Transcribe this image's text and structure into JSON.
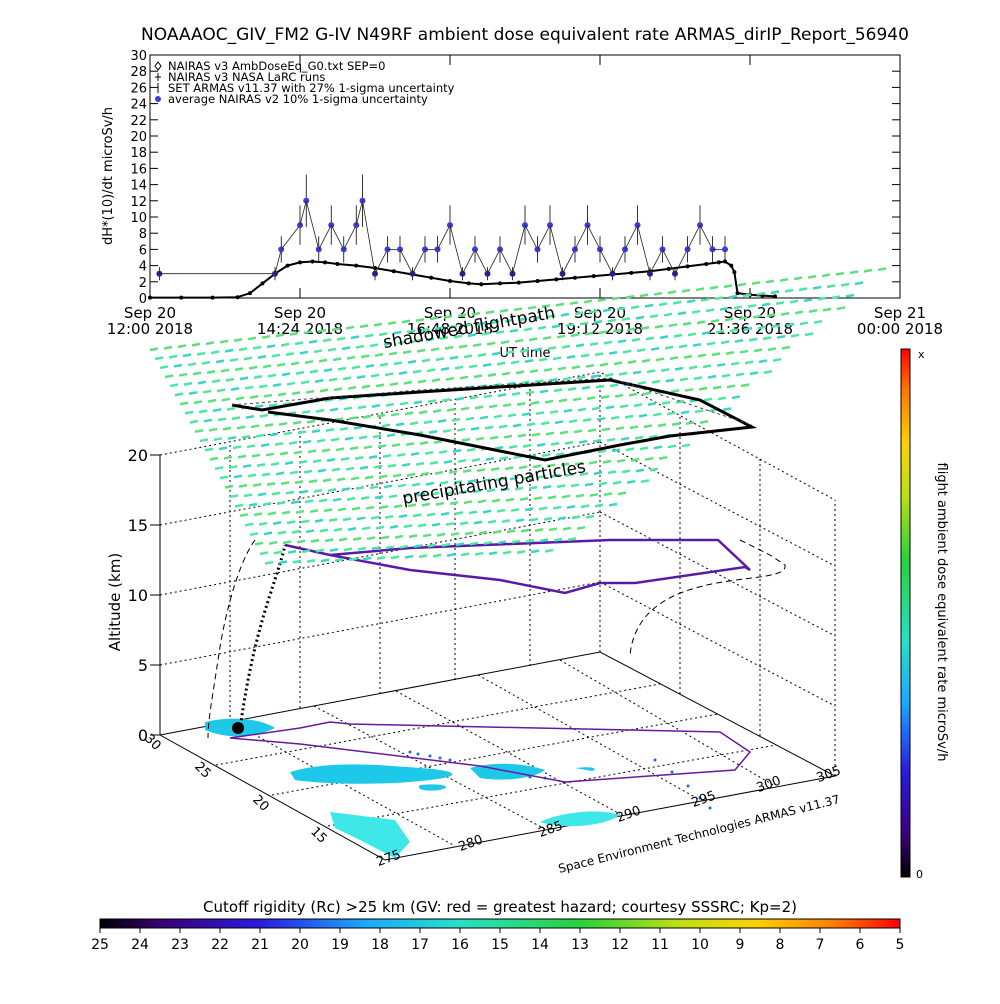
{
  "title": "NOAAAOC_GIV_FM2 G-IV    N49RF  ambient dose equivalent rate ARMAS_dirIP_Report_56940",
  "chart_data": [
    {
      "type": "scatter",
      "ylabel": "dH*(10)/dt microSv/h",
      "xlabel": "UT time",
      "ylim": [
        0,
        30
      ],
      "yticks": [
        "0",
        "2",
        "4",
        "6",
        "8",
        "10",
        "12",
        "14",
        "16",
        "18",
        "20",
        "22",
        "24",
        "26",
        "28",
        "30"
      ],
      "xticks": [
        {
          "hours": 0,
          "line1": "Sep 20",
          "line2": "12:00 2018"
        },
        {
          "hours": 2.4,
          "line1": "Sep 20",
          "line2": "14:24 2018"
        },
        {
          "hours": 4.8,
          "line1": "Sep 20",
          "line2": "16:48 2018"
        },
        {
          "hours": 7.2,
          "line1": "Sep 20",
          "line2": "19:12 2018"
        },
        {
          "hours": 9.6,
          "line1": "Sep 20",
          "line2": "21:36 2018"
        },
        {
          "hours": 12,
          "line1": "Sep 21",
          "line2": "00:00 2018"
        }
      ],
      "xlim_hours": [
        0,
        12
      ],
      "grid": false,
      "legend_position": "top-left",
      "legend": [
        {
          "symbol": "diamond",
          "label": "NAIRAS v3 AmbDoseEq_G0.txt SEP=0"
        },
        {
          "symbol": "plus",
          "label": "NAIRAS v3 NASA LaRC runs"
        },
        {
          "symbol": "bar",
          "label": "SET ARMAS v11.37 with 27% 1-sigma uncertainty"
        },
        {
          "symbol": "dot",
          "label": "average NAIRAS v2 10% 1-sigma uncertainty"
        }
      ],
      "series": [
        {
          "name": "NAIRAS v3 AmbDoseEq_G0.txt SEP=0",
          "color": "#000000",
          "points": [
            [
              0.0,
              0.05
            ],
            [
              0.5,
              0.05
            ],
            [
              1.0,
              0.05
            ],
            [
              1.4,
              0.1
            ],
            [
              1.6,
              0.6
            ],
            [
              1.8,
              1.8
            ],
            [
              2.0,
              3.0
            ],
            [
              2.2,
              4.0
            ],
            [
              2.4,
              4.4
            ],
            [
              2.6,
              4.5
            ],
            [
              2.8,
              4.4
            ],
            [
              3.0,
              4.2
            ],
            [
              3.3,
              4.0
            ],
            [
              3.6,
              3.7
            ],
            [
              3.9,
              3.3
            ],
            [
              4.2,
              2.9
            ],
            [
              4.5,
              2.5
            ],
            [
              4.8,
              2.1
            ],
            [
              5.1,
              1.8
            ],
            [
              5.3,
              1.7
            ],
            [
              5.6,
              1.8
            ],
            [
              5.9,
              1.9
            ],
            [
              6.2,
              2.1
            ],
            [
              6.5,
              2.3
            ],
            [
              6.8,
              2.5
            ],
            [
              7.1,
              2.7
            ],
            [
              7.4,
              2.9
            ],
            [
              7.7,
              3.1
            ],
            [
              8.0,
              3.3
            ],
            [
              8.3,
              3.6
            ],
            [
              8.6,
              3.9
            ],
            [
              8.9,
              4.2
            ],
            [
              9.1,
              4.4
            ],
            [
              9.2,
              4.5
            ],
            [
              9.3,
              4.0
            ],
            [
              9.35,
              3.2
            ],
            [
              9.4,
              0.6
            ],
            [
              9.6,
              0.4
            ],
            [
              9.8,
              0.3
            ],
            [
              10.0,
              0.2
            ]
          ]
        },
        {
          "name": "SET ARMAS v11.37 with 27% 1-sigma uncertainty",
          "color": "#3b1a8c",
          "points": [
            [
              0.15,
              3
            ],
            [
              2.0,
              3
            ],
            [
              2.1,
              6
            ],
            [
              2.4,
              9
            ],
            [
              2.5,
              12
            ],
            [
              2.7,
              6
            ],
            [
              2.9,
              9
            ],
            [
              3.1,
              6
            ],
            [
              3.3,
              9
            ],
            [
              3.4,
              12
            ],
            [
              3.6,
              3
            ],
            [
              3.8,
              6
            ],
            [
              4.0,
              6
            ],
            [
              4.2,
              3
            ],
            [
              4.4,
              6
            ],
            [
              4.6,
              6
            ],
            [
              4.8,
              9
            ],
            [
              5.0,
              3
            ],
            [
              5.2,
              6
            ],
            [
              5.4,
              3
            ],
            [
              5.6,
              6
            ],
            [
              5.8,
              3
            ],
            [
              6.0,
              9
            ],
            [
              6.2,
              6
            ],
            [
              6.4,
              9
            ],
            [
              6.6,
              3
            ],
            [
              6.8,
              6
            ],
            [
              7.0,
              9
            ],
            [
              7.2,
              6
            ],
            [
              7.4,
              3
            ],
            [
              7.6,
              6
            ],
            [
              7.8,
              9
            ],
            [
              8.0,
              3
            ],
            [
              8.2,
              6
            ],
            [
              8.4,
              3
            ],
            [
              8.6,
              6
            ],
            [
              8.8,
              9
            ],
            [
              9.0,
              6
            ],
            [
              9.2,
              6
            ]
          ]
        }
      ]
    },
    {
      "type": "scatter",
      "title": "shadowed flightpath",
      "zlabel": "Altitude (km)",
      "zticks": [
        "0",
        "5",
        "10",
        "15",
        "20"
      ],
      "lat_ticks": [
        "30",
        "25",
        "20",
        "15"
      ],
      "lon_ticks": [
        "275",
        "280",
        "285",
        "290",
        "295",
        "300",
        "305"
      ],
      "annotation": "precipitating particles",
      "credit": "Space Environment Technologies ARMAS v11.37",
      "colorbar": {
        "label": "flight ambient dose equivalent rate microSv/h",
        "max_label": "x",
        "min_label": "0"
      }
    },
    {
      "type": "heatmap",
      "title": "Cutoff rigidity (Rc) >25 km (GV: red = greatest hazard; courtesy SSSRC; Kp=2)",
      "ticks": [
        "25",
        "24",
        "23",
        "22",
        "21",
        "20",
        "19",
        "18",
        "17",
        "16",
        "15",
        "14",
        "13",
        "12",
        "11",
        "10",
        "9",
        "8",
        "7",
        "6",
        "5"
      ]
    }
  ]
}
